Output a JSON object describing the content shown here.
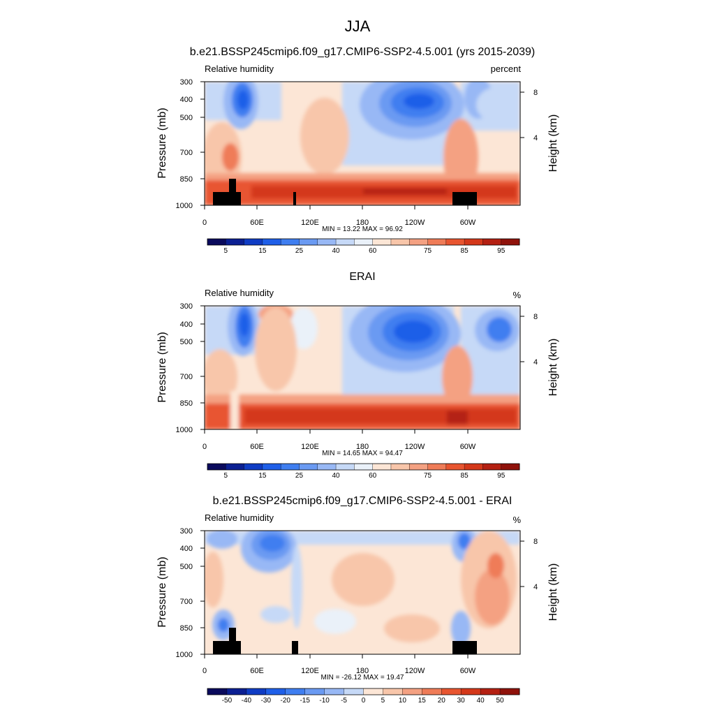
{
  "figure": {
    "title": "JJA"
  },
  "chart_data": [
    {
      "type": "heatmap",
      "title": "b.e21.BSSP245cmip6.f09_g17.CMIP6-SSP2-4.5.001 (yrs 2015-2039)",
      "variable": "Relative humidity",
      "units": "percent",
      "xlabel": "",
      "ylabel": "Pressure (mb)",
      "y2label": "Height (km)",
      "xticks": [
        "0",
        "60E",
        "120E",
        "180",
        "120W",
        "60W"
      ],
      "yticks": [
        "300",
        "400",
        "500",
        "700",
        "850",
        "1000"
      ],
      "y2ticks": [
        "8",
        "4"
      ],
      "stats": "MIN =  13.22  MAX =  96.92",
      "min": 13.22,
      "max": 96.92,
      "colorbar_labels": [
        "5",
        "15",
        "25",
        "40",
        "60",
        "75",
        "85",
        "95"
      ],
      "colorbar_levels": [
        5,
        10,
        15,
        20,
        25,
        30,
        40,
        50,
        60,
        65,
        70,
        75,
        80,
        85,
        90,
        95
      ],
      "colors": [
        "#0a0a5c",
        "#0b1f92",
        "#0f3cc4",
        "#1f5fe8",
        "#3f7ef0",
        "#6a9af2",
        "#98b8f5",
        "#c6d9f7",
        "#eaf1f9",
        "#fce6d6",
        "#f8c6aa",
        "#f4a182",
        "#ef7c58",
        "#e85530",
        "#d4381a",
        "#b42012",
        "#8f120b"
      ],
      "features": {
        "dry_upper_troposphere_centers_lon": [
          30,
          205,
          280
        ],
        "moist_boundary_layer_pressure_mb": [
          850,
          1000
        ],
        "terrain_masked": true
      }
    },
    {
      "type": "heatmap",
      "title": "ERAI",
      "variable": "Relative humidity",
      "units": "%",
      "xlabel": "",
      "ylabel": "Pressure (mb)",
      "y2label": "Height (km)",
      "xticks": [
        "0",
        "60E",
        "120E",
        "180",
        "120W",
        "60W"
      ],
      "yticks": [
        "300",
        "400",
        "500",
        "700",
        "850",
        "1000"
      ],
      "y2ticks": [
        "8",
        "4"
      ],
      "stats": "MIN =  14.65  MAX =  94.47",
      "min": 14.65,
      "max": 94.47,
      "colorbar_labels": [
        "5",
        "15",
        "25",
        "40",
        "60",
        "75",
        "85",
        "95"
      ],
      "colorbar_levels": [
        5,
        10,
        15,
        20,
        25,
        30,
        40,
        50,
        60,
        65,
        70,
        75,
        80,
        85,
        90,
        95
      ],
      "colors": [
        "#0a0a5c",
        "#0b1f92",
        "#0f3cc4",
        "#1f5fe8",
        "#3f7ef0",
        "#6a9af2",
        "#98b8f5",
        "#c6d9f7",
        "#eaf1f9",
        "#fce6d6",
        "#f8c6aa",
        "#f4a182",
        "#ef7c58",
        "#e85530",
        "#d4381a",
        "#b42012",
        "#8f120b"
      ],
      "features": {
        "dry_upper_troposphere_centers_lon": [
          30,
          210,
          320
        ],
        "moist_boundary_layer_pressure_mb": [
          850,
          1000
        ],
        "terrain_masked": false
      }
    },
    {
      "type": "heatmap",
      "title": "b.e21.BSSP245cmip6.f09_g17.CMIP6-SSP2-4.5.001 - ERAI",
      "variable": "Relative humidity",
      "units": "%",
      "xlabel": "",
      "ylabel": "Pressure (mb)",
      "y2label": "Height (km)",
      "xticks": [
        "0",
        "60E",
        "120E",
        "180",
        "120W",
        "60W"
      ],
      "yticks": [
        "300",
        "400",
        "500",
        "700",
        "850",
        "1000"
      ],
      "y2ticks": [
        "8",
        "4"
      ],
      "stats": "MIN = -26.12  MAX =  19.47",
      "min": -26.12,
      "max": 19.47,
      "colorbar_labels": [
        "-50",
        "-40",
        "-30",
        "-20",
        "-15",
        "-10",
        "-5",
        "0",
        "5",
        "10",
        "15",
        "20",
        "30",
        "40",
        "50"
      ],
      "colorbar_levels": [
        -50,
        -40,
        -30,
        -20,
        -15,
        -10,
        -5,
        0,
        5,
        10,
        15,
        20,
        30,
        40,
        50
      ],
      "colors": [
        "#0a0a5c",
        "#0b1f92",
        "#0f3cc4",
        "#1f5fe8",
        "#3f7ef0",
        "#6a9af2",
        "#98b8f5",
        "#c6d9f7",
        "#fce6d6",
        "#f8c6aa",
        "#f4a182",
        "#ef7c58",
        "#e85530",
        "#d4381a",
        "#b42012",
        "#8f120b"
      ],
      "features": {
        "negative_centers_lon": [
          30,
          75,
          315
        ],
        "positive_centers_lon": [
          145,
          335
        ],
        "terrain_masked": true
      }
    }
  ]
}
